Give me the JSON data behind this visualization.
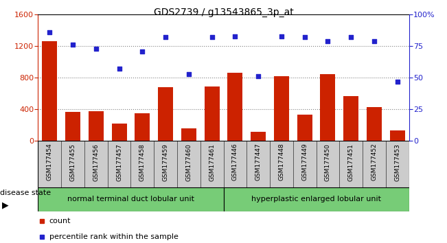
{
  "title": "GDS2739 / g13543865_3p_at",
  "categories": [
    "GSM177454",
    "GSM177455",
    "GSM177456",
    "GSM177457",
    "GSM177458",
    "GSM177459",
    "GSM177460",
    "GSM177461",
    "GSM177446",
    "GSM177447",
    "GSM177448",
    "GSM177449",
    "GSM177450",
    "GSM177451",
    "GSM177452",
    "GSM177453"
  ],
  "bar_values": [
    1260,
    370,
    375,
    220,
    350,
    680,
    155,
    690,
    860,
    115,
    820,
    330,
    850,
    570,
    430,
    130
  ],
  "dot_values": [
    86,
    76,
    73,
    57,
    71,
    82,
    53,
    82,
    83,
    51,
    83,
    82,
    79,
    82,
    79,
    47
  ],
  "bar_color": "#cc2200",
  "dot_color": "#2222cc",
  "ylim_left": [
    0,
    1600
  ],
  "ylim_right": [
    0,
    100
  ],
  "yticks_left": [
    0,
    400,
    800,
    1200,
    1600
  ],
  "yticks_right": [
    0,
    25,
    50,
    75,
    100
  ],
  "yticklabels_right": [
    "0",
    "25",
    "50",
    "75",
    "100%"
  ],
  "group1_label": "normal terminal duct lobular unit",
  "group2_label": "hyperplastic enlarged lobular unit",
  "group1_count": 8,
  "group2_count": 8,
  "disease_state_label": "disease state",
  "legend_bar_label": "count",
  "legend_dot_label": "percentile rank within the sample",
  "group_color": "#77cc77",
  "tick_area_color": "#cccccc",
  "background_color": "#ffffff",
  "gridline_values": [
    400,
    800,
    1200
  ],
  "title_fontsize": 10,
  "tick_fontsize": 6.5,
  "label_fontsize": 8,
  "axis_fontsize": 8
}
